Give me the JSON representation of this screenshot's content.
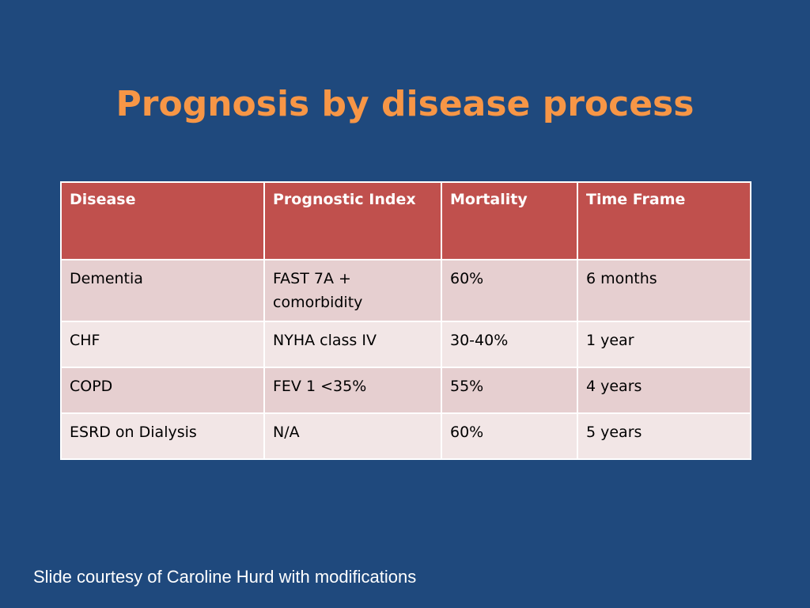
{
  "slide": {
    "title": "Prognosis by disease process",
    "credit": "Slide courtesy of Caroline Hurd with modifications"
  },
  "colors": {
    "background": "#1f497d",
    "title": "#f79646",
    "header": "#c0504d",
    "row_odd": "#e6cfd0",
    "row_even": "#f2e6e6"
  },
  "table": {
    "headers": [
      "Disease",
      "Prognostic Index",
      "Mortality",
      "Time Frame"
    ],
    "rows": [
      [
        "Dementia",
        "FAST 7A + comorbidity",
        "60%",
        "6 months"
      ],
      [
        "CHF",
        "NYHA class IV",
        "30-40%",
        "1 year"
      ],
      [
        "COPD",
        "FEV 1 <35%",
        "55%",
        "4 years"
      ],
      [
        "ESRD on Dialysis",
        "N/A",
        "60%",
        "5 years"
      ]
    ]
  }
}
